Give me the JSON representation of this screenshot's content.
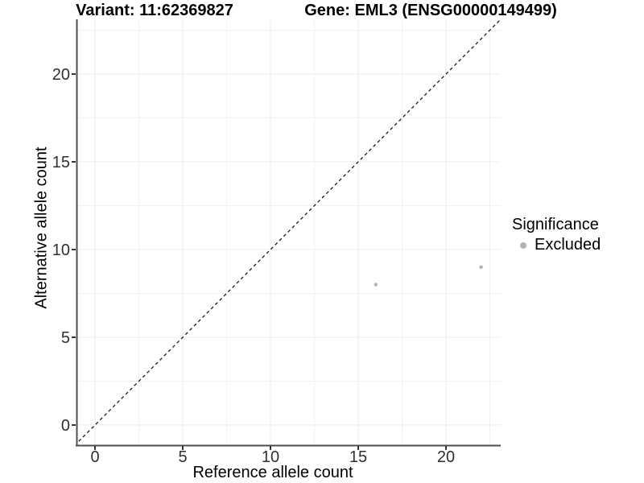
{
  "figure": {
    "background": "#ffffff"
  },
  "chart_data": {
    "type": "scatter",
    "titles": {
      "left": "Variant: 11:62369827",
      "right": "Gene: EML3 (ENSG00000149499)"
    },
    "xlabel": "Reference allele count",
    "ylabel": "Alternative allele count",
    "xlim": [
      -1.06,
      23.12
    ],
    "ylim": [
      -1.15,
      23.12
    ],
    "x_major_ticks": [
      0,
      5,
      10,
      15,
      20
    ],
    "y_major_ticks": [
      0,
      5,
      10,
      15,
      20
    ],
    "x_minor_ticks": [
      2.5,
      7.5,
      12.5,
      17.5,
      22.5
    ],
    "y_minor_ticks": [
      2.5,
      7.5,
      12.5,
      17.5,
      22.5
    ],
    "grid": true,
    "series": [
      {
        "name": "Excluded",
        "color": "#b4b4b4",
        "marker": "circle",
        "points": [
          {
            "x": 16,
            "y": 8
          },
          {
            "x": 22,
            "y": 9
          }
        ]
      }
    ],
    "reference_line": {
      "type": "identity",
      "style": "dashed",
      "color": "#1a1a1a"
    },
    "legend": {
      "title": "Significance",
      "position": "right",
      "items": [
        {
          "label": "Excluded",
          "color": "#b4b4b4",
          "marker": "circle"
        }
      ]
    },
    "colors": {
      "grid_major": "#ececec",
      "grid_minor": "#f1f1f1",
      "axis_line": "#4d4d4d",
      "tick_mark": "#333333",
      "tick_label": "#303030",
      "title": "#000000"
    }
  }
}
